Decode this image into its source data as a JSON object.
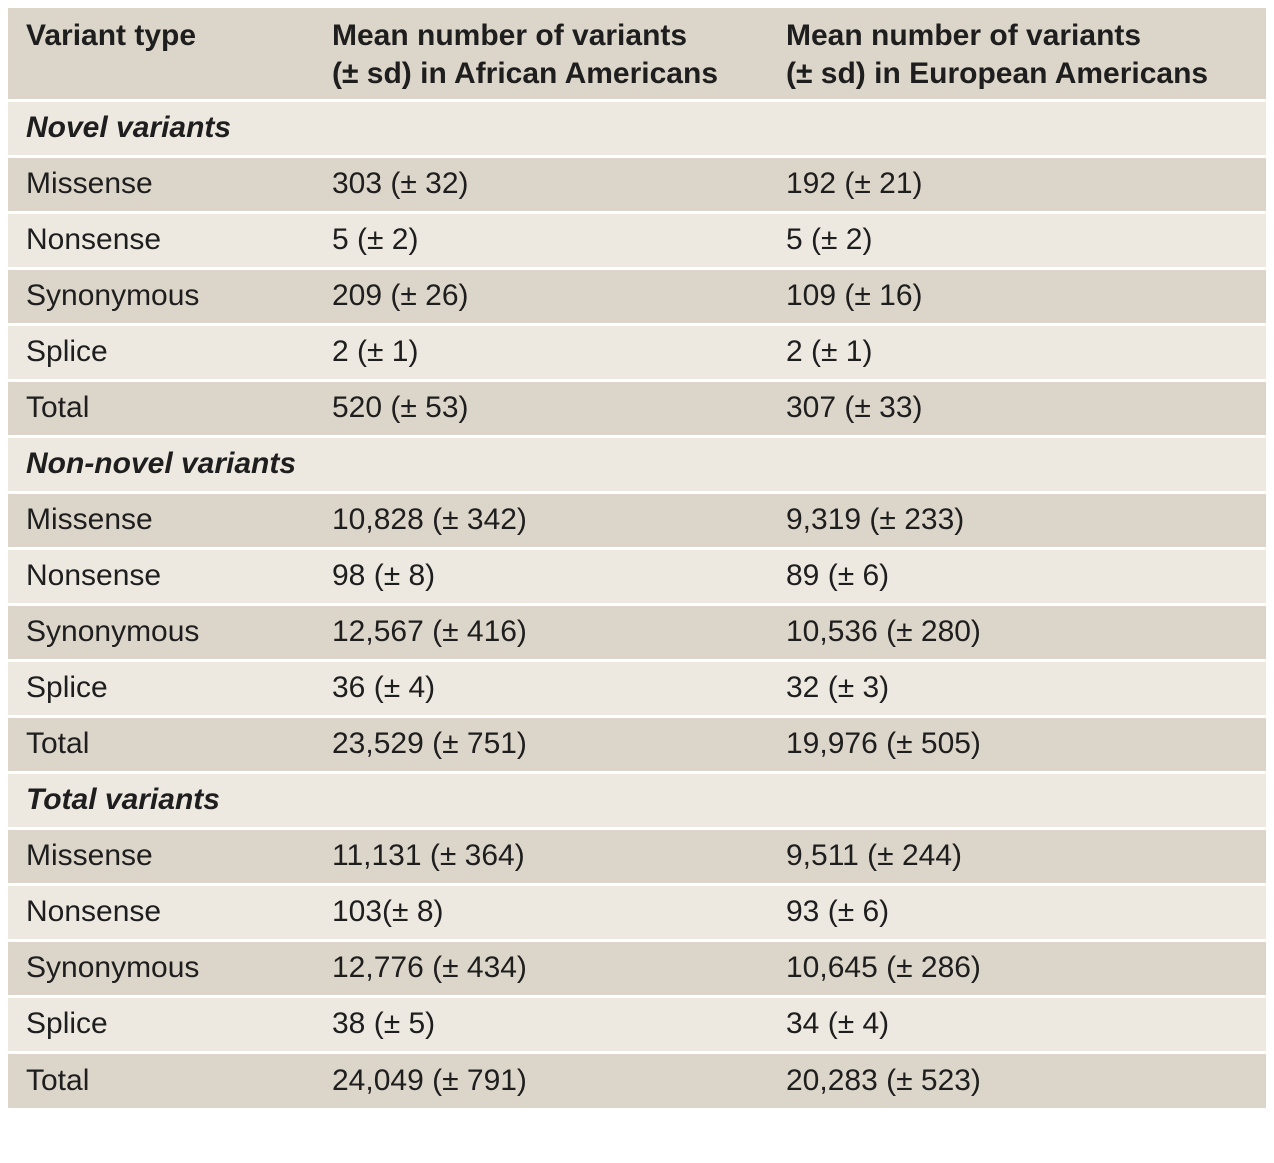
{
  "headers": {
    "col1": "Variant type",
    "col2_line1": "Mean number of variants",
    "col2_line2": "(± sd) in African Americans",
    "col3_line1": "Mean number of variants",
    "col3_line2": "(± sd) in European Americans"
  },
  "sections": [
    {
      "title": "Novel variants",
      "rows": [
        {
          "type": "Missense",
          "african_american": "303 (± 32)",
          "european_american": "192 (± 21)"
        },
        {
          "type": "Nonsense",
          "african_american": "5 (± 2)",
          "european_american": "5 (± 2)"
        },
        {
          "type": "Synonymous",
          "african_american": "209 (± 26)",
          "european_american": "109 (± 16)"
        },
        {
          "type": "Splice",
          "african_american": "2 (± 1)",
          "european_american": "2 (± 1)"
        },
        {
          "type": "Total",
          "african_american": "520 (± 53)",
          "european_american": "307 (± 33)"
        }
      ]
    },
    {
      "title": "Non-novel variants",
      "rows": [
        {
          "type": "Missense",
          "african_american": "10,828 (± 342)",
          "european_american": "9,319 (± 233)"
        },
        {
          "type": "Nonsense",
          "african_american": "98 (± 8)",
          "european_american": "89 (± 6)"
        },
        {
          "type": "Synonymous",
          "african_american": "12,567 (± 416)",
          "european_american": "10,536 (± 280)"
        },
        {
          "type": "Splice",
          "african_american": "36 (± 4)",
          "european_american": "32 (± 3)"
        },
        {
          "type": "Total",
          "african_american": "23,529 (± 751)",
          "european_american": "19,976 (± 505)"
        }
      ]
    },
    {
      "title": "Total variants",
      "rows": [
        {
          "type": "Missense",
          "african_american": "11,131 (± 364)",
          "european_american": "9,511 (± 244)"
        },
        {
          "type": "Nonsense",
          "african_american": "103(± 8)",
          "european_american": "93 (± 6)"
        },
        {
          "type": "Synonymous",
          "african_american": "12,776 (± 434)",
          "european_american": "10,645 (± 286)"
        },
        {
          "type": "Splice",
          "african_american": "38 (± 5)",
          "european_american": "34 (± 4)"
        },
        {
          "type": "Total",
          "african_american": "24,049 (± 791)",
          "european_american": "20,283 (± 523)"
        }
      ]
    }
  ],
  "colors": {
    "dark_row": "#dcd5c9",
    "light_row": "#ede8e0",
    "separator": "#ffffff",
    "text": "#1e1e1e"
  }
}
